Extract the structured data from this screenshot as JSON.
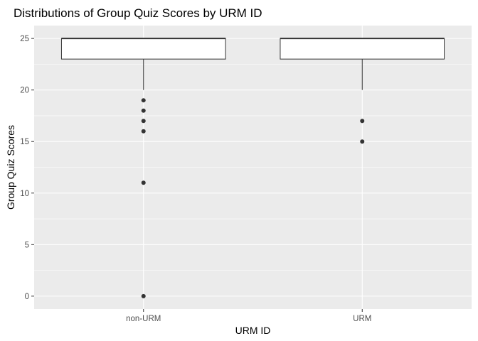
{
  "chart_data": {
    "type": "boxplot",
    "title": "Distributions of Group Quiz Scores by URM ID",
    "xlabel": "URM ID",
    "ylabel": "Group Quiz Scores",
    "categories": [
      "non-URM",
      "URM"
    ],
    "ylim": [
      -1.25,
      26.25
    ],
    "yticks": [
      0,
      5,
      10,
      15,
      20,
      25
    ],
    "ytick_labels": [
      "0",
      "5",
      "10",
      "15",
      "20",
      "25"
    ],
    "grid": true,
    "legend": "none",
    "boxes": [
      {
        "category": "non-URM",
        "lower_whisker": 20,
        "q1": 23,
        "median": 25,
        "q3": 25,
        "upper_whisker": 25,
        "outliers": [
          19,
          18,
          17,
          16,
          11,
          0
        ]
      },
      {
        "category": "URM",
        "lower_whisker": 20,
        "q1": 23,
        "median": 25,
        "q3": 25,
        "upper_whisker": 25,
        "outliers": [
          17,
          15
        ]
      }
    ],
    "colors": {
      "panel_background": "#ebebeb",
      "grid_major": "#ffffff",
      "box_fill": "#ffffff",
      "box_line": "#333333",
      "outlier": "#333333",
      "tick_label": "#4d4d4d"
    }
  }
}
